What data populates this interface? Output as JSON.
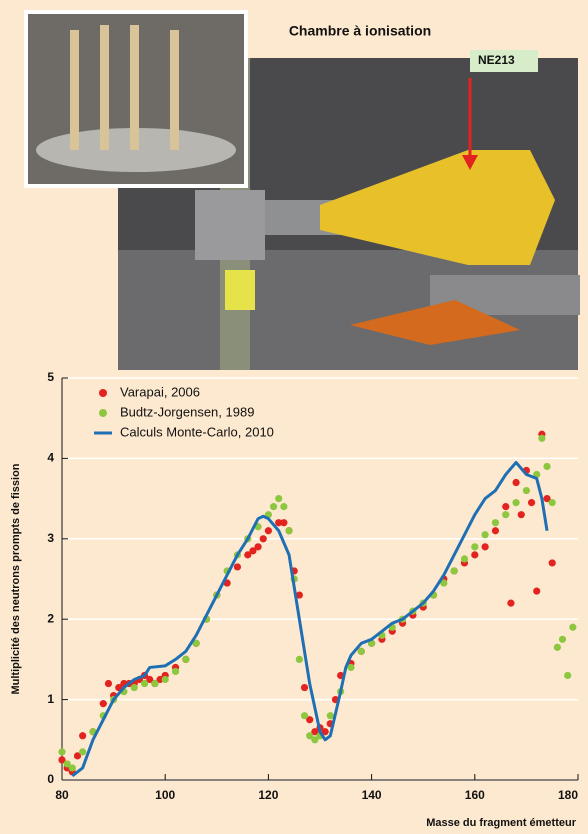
{
  "photo": {
    "title": "Chambre à ionisation",
    "detector": "NE213"
  },
  "chart_data": {
    "type": "scatter",
    "x_label": "Masse du fragment émetteur",
    "y_label": "Multiplicité des neutrons prompts de fission",
    "xlim": [
      80,
      180
    ],
    "ylim": [
      0,
      5
    ],
    "xticks": [
      80,
      100,
      120,
      140,
      160,
      180
    ],
    "yticks": [
      0,
      1,
      2,
      3,
      4,
      5
    ],
    "grid": true,
    "legend": "upper left",
    "series": [
      {
        "name": "Varapai, 2006",
        "color": "#e3231f",
        "type": "scatter",
        "x": [
          80,
          81,
          82,
          83,
          84,
          86,
          88,
          89,
          90,
          91,
          92,
          93,
          94,
          95,
          96,
          97,
          98,
          99,
          100,
          102,
          104,
          106,
          108,
          110,
          112,
          114,
          116,
          117,
          118,
          119,
          120,
          122,
          123,
          124,
          125,
          126,
          127,
          128,
          129,
          130,
          131,
          132,
          133,
          134,
          136,
          138,
          140,
          142,
          144,
          146,
          148,
          150,
          152,
          154,
          156,
          158,
          160,
          162,
          164,
          166,
          167,
          168,
          169,
          170,
          171,
          172,
          173,
          174,
          175
        ],
        "values": [
          0.25,
          0.15,
          0.1,
          0.3,
          0.55,
          0.6,
          0.95,
          1.2,
          1.05,
          1.15,
          1.2,
          1.2,
          1.2,
          1.25,
          1.3,
          1.25,
          1.2,
          1.25,
          1.3,
          1.4,
          1.5,
          1.7,
          2.0,
          2.3,
          2.45,
          2.65,
          2.8,
          2.85,
          2.9,
          3.0,
          3.1,
          3.2,
          3.2,
          3.1,
          2.6,
          2.3,
          1.15,
          0.75,
          0.6,
          0.65,
          0.6,
          0.7,
          1.0,
          1.3,
          1.45,
          1.6,
          1.7,
          1.75,
          1.85,
          1.95,
          2.05,
          2.15,
          2.3,
          2.5,
          2.6,
          2.7,
          2.8,
          2.9,
          3.1,
          3.4,
          2.2,
          3.7,
          3.3,
          3.85,
          3.45,
          2.35,
          4.3,
          3.5,
          2.7
        ]
      },
      {
        "name": "Budtz-Jorgensen, 1989",
        "color": "#8dc63f",
        "type": "scatter",
        "x": [
          80,
          81,
          82,
          84,
          86,
          88,
          90,
          92,
          94,
          96,
          98,
          100,
          102,
          104,
          106,
          108,
          110,
          112,
          114,
          116,
          118,
          120,
          121,
          122,
          123,
          124,
          125,
          126,
          127,
          128,
          129,
          130,
          132,
          134,
          136,
          138,
          140,
          142,
          144,
          146,
          148,
          150,
          152,
          154,
          156,
          158,
          160,
          162,
          164,
          166,
          168,
          170,
          172,
          173,
          174,
          175,
          176,
          177,
          178,
          179
        ],
        "values": [
          0.35,
          0.2,
          0.15,
          0.35,
          0.6,
          0.8,
          1.0,
          1.1,
          1.15,
          1.2,
          1.2,
          1.25,
          1.35,
          1.5,
          1.7,
          2.0,
          2.3,
          2.6,
          2.8,
          3.0,
          3.15,
          3.3,
          3.4,
          3.5,
          3.4,
          3.1,
          2.5,
          1.5,
          0.8,
          0.55,
          0.5,
          0.55,
          0.8,
          1.1,
          1.4,
          1.6,
          1.7,
          1.8,
          1.9,
          2.0,
          2.1,
          2.2,
          2.3,
          2.45,
          2.6,
          2.75,
          2.9,
          3.05,
          3.2,
          3.3,
          3.45,
          3.6,
          3.8,
          4.25,
          3.9,
          3.45,
          1.65,
          1.75,
          1.3,
          1.9
        ]
      },
      {
        "name": "Calculs Monte-Carlo, 2010",
        "color": "#1f6fb5",
        "type": "line",
        "x": [
          82,
          84,
          86,
          88,
          90,
          92,
          94,
          96,
          97,
          100,
          102,
          104,
          106,
          108,
          110,
          112,
          114,
          116,
          118,
          119,
          120,
          122,
          124,
          126,
          128,
          130,
          131,
          132,
          134,
          135,
          136,
          138,
          140,
          142,
          144,
          146,
          148,
          150,
          152,
          154,
          156,
          158,
          160,
          162,
          164,
          166,
          168,
          170,
          172,
          173,
          174
        ],
        "values": [
          0.05,
          0.15,
          0.5,
          0.75,
          1.0,
          1.15,
          1.25,
          1.3,
          1.4,
          1.42,
          1.5,
          1.6,
          1.8,
          2.05,
          2.3,
          2.55,
          2.8,
          3.0,
          3.25,
          3.28,
          3.25,
          3.1,
          2.8,
          2.0,
          1.2,
          0.6,
          0.5,
          0.55,
          1.1,
          1.4,
          1.55,
          1.7,
          1.75,
          1.85,
          1.95,
          2.0,
          2.1,
          2.2,
          2.35,
          2.55,
          2.8,
          3.05,
          3.3,
          3.5,
          3.6,
          3.8,
          3.95,
          3.8,
          3.75,
          3.5,
          3.1
        ]
      }
    ]
  }
}
